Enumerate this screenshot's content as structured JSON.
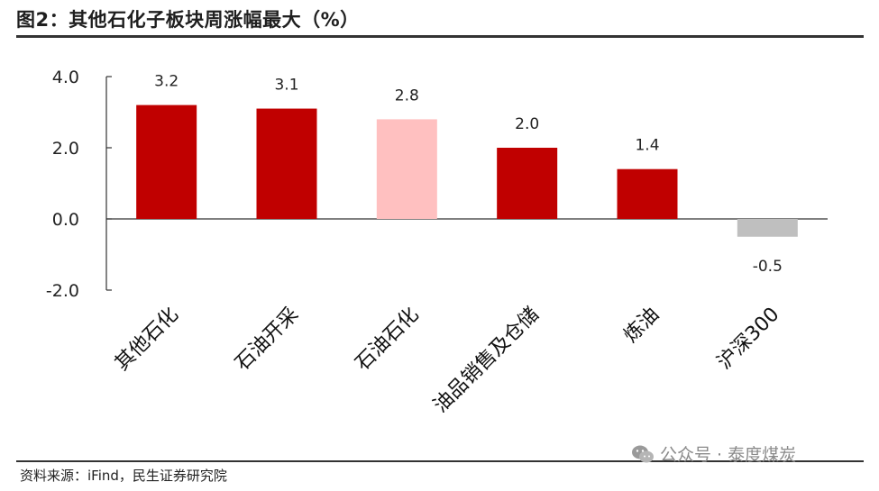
{
  "header": {
    "title": "图2：其他石化子板块周涨幅最大（%）"
  },
  "footer": {
    "source": "资料来源：iFind，民生证券研究院",
    "watermark": "公众号 · 泰度煤炭",
    "watermark_icon": "wechat-icon"
  },
  "chart_data": {
    "type": "bar",
    "categories": [
      "其他石化",
      "石油开采",
      "石油石化",
      "油品销售及仓储",
      "炼油",
      "沪深300"
    ],
    "values": [
      3.2,
      3.1,
      2.8,
      2.0,
      1.4,
      -0.5
    ],
    "value_labels": [
      "3.2",
      "3.1",
      "2.8",
      "2.0",
      "1.4",
      "-0.5"
    ],
    "bar_colors": [
      "#C00000",
      "#C00000",
      "#FFC0C0",
      "#C00000",
      "#C00000",
      "#BFBFBF"
    ],
    "ylim": [
      -2.0,
      4.0
    ],
    "yticks": [
      4.0,
      2.0,
      0.0,
      -2.0
    ],
    "ytick_labels": [
      "4.0",
      "2.0",
      "0.0",
      "-2.0"
    ],
    "grid": false,
    "legend": "none",
    "title": "",
    "xlabel": "",
    "ylabel": ""
  }
}
